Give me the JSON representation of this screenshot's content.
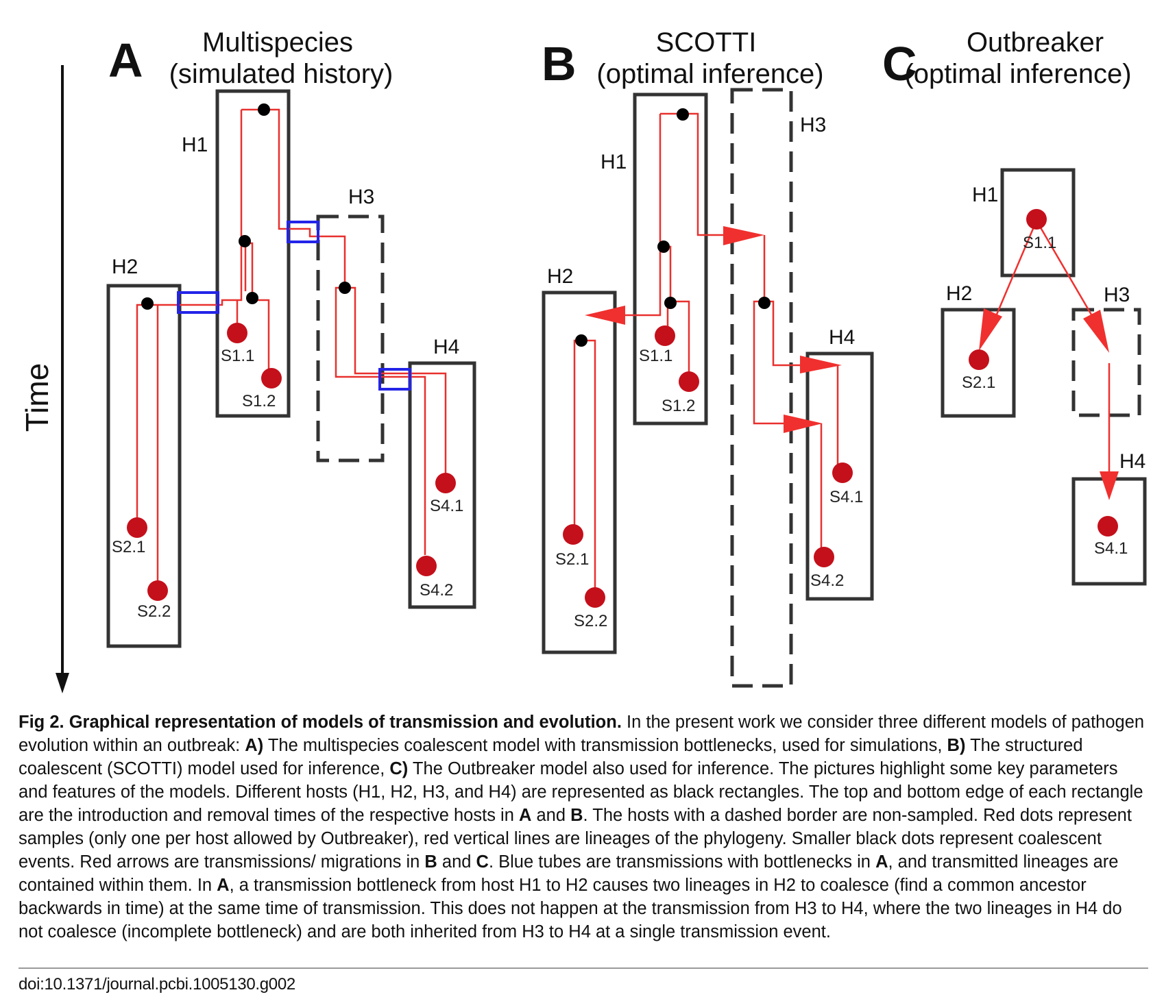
{
  "figure": {
    "axis_label": "Time",
    "panels": [
      {
        "letter": "A",
        "title_lines": [
          "Multispecies",
          "(simulated history)"
        ]
      },
      {
        "letter": "B",
        "title_lines": [
          "SCOTTI",
          "(optimal inference)"
        ]
      },
      {
        "letter": "C",
        "title_lines": [
          "Outbreaker",
          "(optimal inference)"
        ]
      }
    ],
    "hosts": {
      "h1": "H1",
      "h2": "H2",
      "h3": "H3",
      "h4": "H4"
    },
    "samples": {
      "s11": "S1.1",
      "s12": "S1.2",
      "s21": "S2.1",
      "s22": "S2.2",
      "s41": "S4.1",
      "s42": "S4.2"
    },
    "colors": {
      "host_border": "#333333",
      "lineage": "#e8302e",
      "sample_dot": "#c4101b",
      "coalescent_dot": "#000000",
      "bottleneck_tube": "#2424e8",
      "arrow": "#f0302e"
    }
  },
  "caption": {
    "label": "Fig 2.",
    "title": "Graphical representation of models of transmission and evolution.",
    "t1": " In the present work we consider three different models of pathogen evolution within an outbreak: ",
    "a_label": "A)",
    "t2": " The multispecies coalescent model with transmission bottlenecks, used for simulations, ",
    "b_label": "B)",
    "t3": " The structured coalescent (SCOTTI) model used for inference, ",
    "c_label": "C)",
    "t4": " The Outbreaker model also used for inference. The pictures highlight some key parameters and features of the models. Different hosts (H1, H2, H3, and H4) are represented as black rectangles. The top and bottom edge of each rectangle are the introduction and removal times of the respective hosts in ",
    "ref_a1": "A",
    "t5": " and ",
    "ref_b1": "B",
    "t6": ". The hosts with a dashed border are non-sampled. Red dots represent samples (only one per host allowed by Outbreaker), red vertical lines are lineages of the phylogeny. Smaller black dots represent coalescent events. Red arrows are transmissions/ migrations in ",
    "ref_b2": "B",
    "t7": " and ",
    "ref_c1": "C",
    "t8": ". Blue tubes are transmissions with bottlenecks in ",
    "ref_a2": "A",
    "t9": ", and transmitted lineages are contained within them. In ",
    "ref_a3": "A",
    "t10": ", a transmission bottleneck from host H1 to H2 causes two lineages in H2 to coalesce (find a common ancestor backwards in time) at the same time of transmission. This does not happen at the transmission from H3 to H4, where the two lineages in H4 do not coalesce (incomplete bottleneck) and are both inherited from H3 to H4 at a single transmission event."
  },
  "doi": "doi:10.1371/journal.pcbi.1005130.g002"
}
